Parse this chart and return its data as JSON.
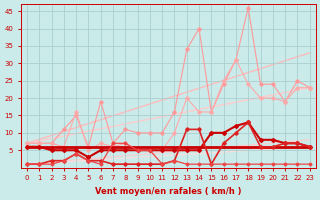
{
  "title": "",
  "xlabel": "Vent moyen/en rafales ( km/h )",
  "ylabel": "",
  "xlim": [
    -0.5,
    23.5
  ],
  "ylim": [
    0,
    47
  ],
  "yticks": [
    5,
    10,
    15,
    20,
    25,
    30,
    35,
    40,
    45
  ],
  "xticks": [
    0,
    1,
    2,
    3,
    4,
    5,
    6,
    7,
    8,
    9,
    10,
    11,
    12,
    13,
    14,
    15,
    16,
    17,
    18,
    19,
    20,
    21,
    22,
    23
  ],
  "background_color": "#cbeaea",
  "grid_color": "#aacfcf",
  "series": [
    {
      "name": "rafales_high",
      "x": [
        0,
        1,
        2,
        3,
        4,
        5,
        6,
        7,
        8,
        9,
        10,
        11,
        12,
        13,
        14,
        15,
        16,
        17,
        18,
        19,
        20,
        21,
        22,
        23
      ],
      "y": [
        7,
        7,
        7,
        11,
        15,
        6,
        19,
        7,
        11,
        10,
        10,
        10,
        16,
        34,
        40,
        16,
        24,
        31,
        46,
        24,
        24,
        19,
        25,
        23
      ],
      "color": "#ff9999",
      "lw": 0.8,
      "marker": "D",
      "ms": 1.8,
      "zorder": 2,
      "alpha": 1.0
    },
    {
      "name": "vent_high",
      "x": [
        0,
        1,
        2,
        3,
        4,
        5,
        6,
        7,
        8,
        9,
        10,
        11,
        12,
        13,
        14,
        15,
        16,
        17,
        18,
        19,
        20,
        21,
        22,
        23
      ],
      "y": [
        7,
        7,
        7,
        6,
        16,
        5,
        7,
        6,
        7,
        5,
        5,
        5,
        10,
        20,
        16,
        16,
        25,
        31,
        24,
        20,
        20,
        19,
        23,
        23
      ],
      "color": "#ffaaaa",
      "lw": 0.8,
      "marker": "D",
      "ms": 1.8,
      "zorder": 2,
      "alpha": 1.0
    },
    {
      "name": "trend_rafales_top",
      "x": [
        0,
        23
      ],
      "y": [
        7,
        33
      ],
      "color": "#ffbbbb",
      "lw": 1.0,
      "marker": null,
      "ms": 0,
      "zorder": 1,
      "alpha": 1.0
    },
    {
      "name": "trend_vent_top",
      "x": [
        0,
        23
      ],
      "y": [
        7,
        23
      ],
      "color": "#ffcccc",
      "lw": 1.0,
      "marker": null,
      "ms": 0,
      "zorder": 1,
      "alpha": 1.0
    },
    {
      "name": "trend_rafales_bot",
      "x": [
        0,
        23
      ],
      "y": [
        1,
        8
      ],
      "color": "#ffcccc",
      "lw": 0.8,
      "marker": null,
      "ms": 0,
      "zorder": 1,
      "alpha": 1.0
    },
    {
      "name": "trend_vent_bot",
      "x": [
        0,
        23
      ],
      "y": [
        1,
        6
      ],
      "color": "#ffdddd",
      "lw": 0.8,
      "marker": null,
      "ms": 0,
      "zorder": 1,
      "alpha": 1.0
    },
    {
      "name": "rafales_dark",
      "x": [
        0,
        1,
        2,
        3,
        4,
        5,
        6,
        7,
        8,
        9,
        10,
        11,
        12,
        13,
        14,
        15,
        16,
        17,
        18,
        19,
        20,
        21,
        22,
        23
      ],
      "y": [
        6,
        6,
        5,
        5,
        5,
        3,
        5,
        5,
        5,
        5,
        5,
        5,
        5,
        5,
        5,
        10,
        10,
        12,
        13,
        8,
        8,
        7,
        7,
        6
      ],
      "color": "#cc0000",
      "lw": 1.5,
      "marker": "D",
      "ms": 2.0,
      "zorder": 3,
      "alpha": 1.0
    },
    {
      "name": "vent_dark",
      "x": [
        0,
        1,
        2,
        3,
        4,
        5,
        6,
        7,
        8,
        9,
        10,
        11,
        12,
        13,
        14,
        15,
        16,
        17,
        18,
        19,
        20,
        21,
        22,
        23
      ],
      "y": [
        1,
        1,
        2,
        2,
        4,
        2,
        2,
        1,
        1,
        1,
        1,
        1,
        2,
        11,
        11,
        1,
        7,
        10,
        13,
        6,
        6,
        7,
        7,
        6
      ],
      "color": "#dd2222",
      "lw": 1.2,
      "marker": "D",
      "ms": 1.8,
      "zorder": 3,
      "alpha": 1.0
    },
    {
      "name": "vent_lowest",
      "x": [
        0,
        1,
        2,
        3,
        4,
        5,
        6,
        7,
        8,
        9,
        10,
        11,
        12,
        13,
        14,
        15,
        16,
        17,
        18,
        19,
        20,
        21,
        22,
        23
      ],
      "y": [
        1,
        1,
        1,
        2,
        4,
        2,
        1,
        7,
        7,
        5,
        5,
        1,
        2,
        1,
        1,
        1,
        1,
        1,
        1,
        1,
        1,
        1,
        1,
        1
      ],
      "color": "#ee4444",
      "lw": 0.9,
      "marker": "D",
      "ms": 1.5,
      "zorder": 3,
      "alpha": 1.0
    },
    {
      "name": "flat_red",
      "x": [
        0,
        23
      ],
      "y": [
        6,
        6
      ],
      "color": "#cc0000",
      "lw": 2.0,
      "marker": null,
      "ms": 0,
      "zorder": 2,
      "alpha": 1.0
    }
  ],
  "label_color": "#cc0000",
  "tick_color": "#cc0000",
  "xlabel_color": "#cc0000",
  "axis_color": "#cc0000",
  "xlabel_fontsize": 6,
  "tick_labelsize": 5
}
